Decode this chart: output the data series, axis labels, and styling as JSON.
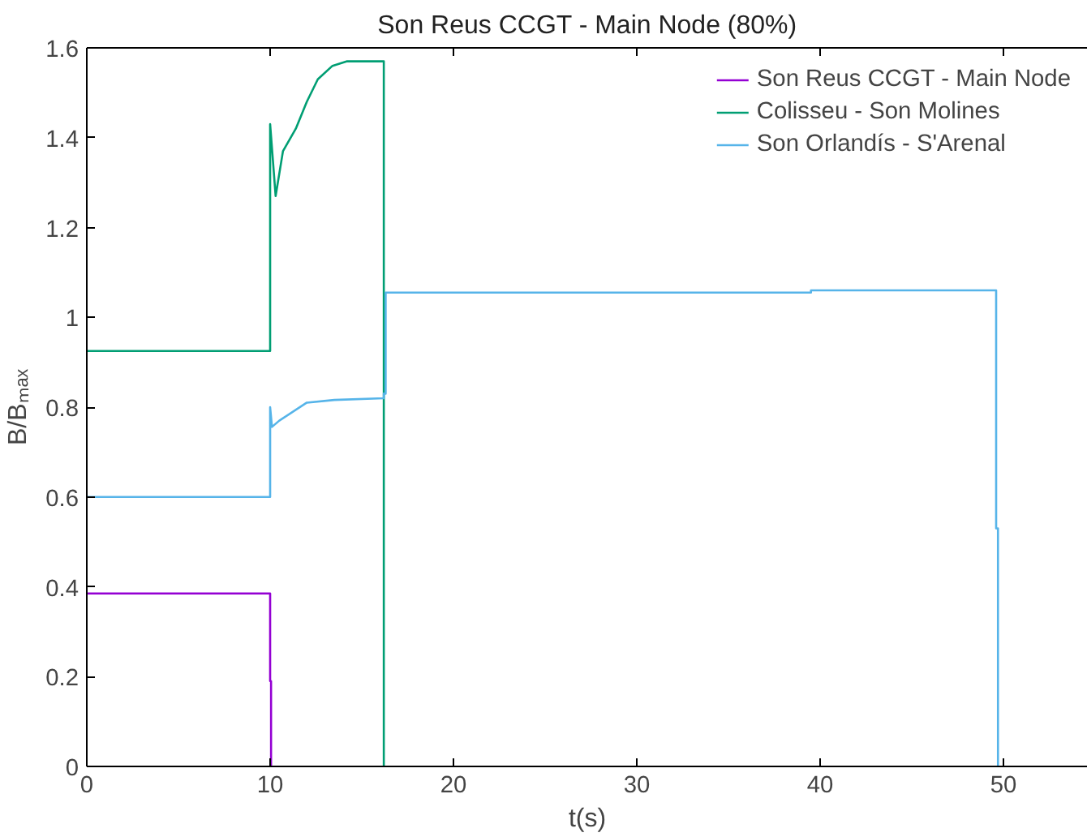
{
  "chart_data": {
    "type": "line",
    "title": "Son Reus CCGT - Main Node (80%)",
    "xlabel": "t(s)",
    "ylabel": "B/Bₘₐₓ",
    "xlim": [
      0,
      54.6
    ],
    "ylim": [
      0,
      1.6
    ],
    "xticks": [
      0,
      10,
      20,
      30,
      40,
      50
    ],
    "yticks": [
      0,
      0.2,
      0.4,
      0.6,
      0.8,
      1,
      1.2,
      1.4,
      1.6
    ],
    "grid": false,
    "legend": "top right",
    "series": [
      {
        "name": "Son Reus CCGT - Main Node",
        "color": "#9400d3",
        "x": [
          0,
          10,
          10,
          10.05,
          10.05
        ],
        "values": [
          0.385,
          0.385,
          0.19,
          0.19,
          0
        ]
      },
      {
        "name": "Colisseu - Son Molines",
        "color": "#009e73",
        "x": [
          0,
          10,
          10,
          10.3,
          10.7,
          11.4,
          12,
          12.6,
          13.4,
          14.2,
          16.2,
          16.2
        ],
        "values": [
          0.925,
          0.925,
          1.43,
          1.27,
          1.37,
          1.42,
          1.48,
          1.53,
          1.56,
          1.57,
          1.57,
          0
        ]
      },
      {
        "name": "Son Orlandís - S'Arenal",
        "color": "#56b4e9",
        "x": [
          0,
          10,
          10,
          10.1,
          10.5,
          12,
          13.5,
          16.2,
          16.2,
          16.3,
          16.3,
          39.5,
          39.5,
          49.6,
          49.6,
          49.7,
          49.7
        ],
        "values": [
          0.6,
          0.6,
          0.8,
          0.756,
          0.77,
          0.81,
          0.816,
          0.82,
          0.83,
          0.83,
          1.055,
          1.055,
          1.06,
          1.06,
          0.53,
          0.53,
          0
        ]
      }
    ]
  }
}
